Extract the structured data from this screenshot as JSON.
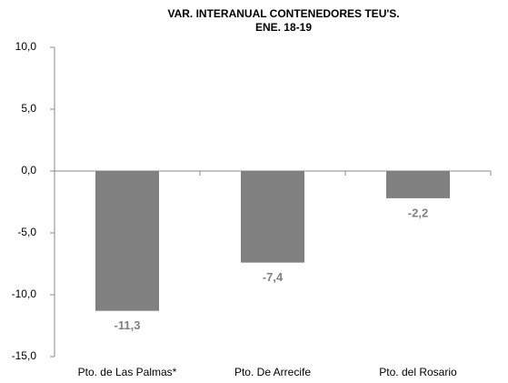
{
  "chart_data": {
    "type": "bar",
    "title": [
      "VAR. INTERANUAL CONTENEDORES TEU'S.",
      "ENE. 18-19"
    ],
    "categories": [
      "Pto. de Las Palmas*",
      "Pto. De Arrecife",
      "Pto. del Rosario"
    ],
    "values": [
      -11.3,
      -7.4,
      -2.2
    ],
    "value_labels": [
      "-11,3",
      "-7,4",
      "-2,2"
    ],
    "color": "#808080",
    "ylim": [
      -15,
      10
    ],
    "yticks": [
      {
        "value": -15,
        "label": "-15,0"
      },
      {
        "value": -10,
        "label": "-10,0"
      },
      {
        "value": -5,
        "label": "-5,0"
      },
      {
        "value": 0,
        "label": "0,0"
      },
      {
        "value": 5,
        "label": "5,0"
      },
      {
        "value": 10,
        "label": "10,0"
      }
    ],
    "grid": false
  }
}
